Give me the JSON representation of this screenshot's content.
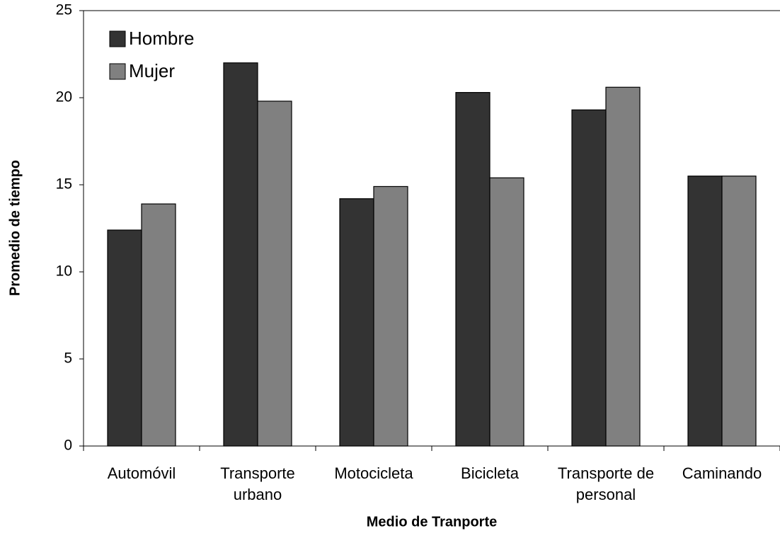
{
  "chart_data": {
    "type": "bar",
    "categories": [
      "Automóvil",
      "Transporte urbano",
      "Motocicleta",
      "Bicicleta",
      "Transporte de personal",
      "Caminando"
    ],
    "series": [
      {
        "name": "Hombre",
        "color": "#333333",
        "values": [
          12.4,
          22.0,
          14.2,
          20.3,
          19.3,
          15.5
        ]
      },
      {
        "name": "Mujer",
        "color": "#808080",
        "values": [
          13.9,
          19.8,
          14.9,
          15.4,
          20.6,
          15.5
        ]
      }
    ],
    "ylim": [
      0,
      25
    ],
    "yticks": [
      0,
      5,
      10,
      15,
      20,
      25
    ],
    "x_label": "Medio de Tranporte",
    "y_label": "Promedio de tiempo",
    "legend": "top-left",
    "grid": false
  }
}
